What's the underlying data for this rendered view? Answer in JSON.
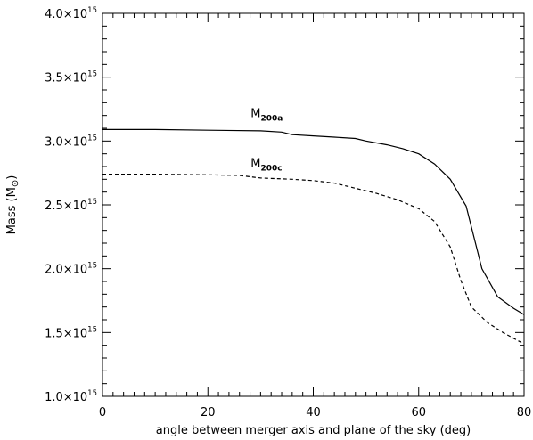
{
  "chart_data": {
    "type": "line",
    "xlabel": "angle between merger axis and plane of the sky (deg)",
    "ylabel": "Mass (M",
    "ylabel_symbol": "⊙",
    "ylabel_close": ")",
    "xlim": [
      0,
      80
    ],
    "ylim": [
      1000000000000000.0,
      4000000000000000.0
    ],
    "x_ticks": [
      0,
      20,
      40,
      60,
      80
    ],
    "x_tick_labels": [
      "0",
      "20",
      "40",
      "60",
      "80"
    ],
    "y_ticks": [
      1000000000000000.0,
      1500000000000000.0,
      2000000000000000.0,
      2500000000000000.0,
      3000000000000000.0,
      3500000000000000.0,
      4000000000000000.0
    ],
    "y_tick_mantissas": [
      "1.0×10",
      "1.5×10",
      "2.0×10",
      "2.5×10",
      "3.0×10",
      "3.5×10",
      "4.0×10"
    ],
    "y_tick_exponent": "15",
    "grid": false,
    "series": [
      {
        "name": "M",
        "name_subscript": "200a",
        "style": "solid",
        "color": "#000000",
        "x": [
          0,
          10,
          20,
          30,
          34,
          36,
          40,
          44,
          48,
          50,
          54,
          57,
          60,
          63,
          66,
          69,
          72,
          75,
          78,
          80
        ],
        "y": [
          3090000000000000.0,
          3090000000000000.0,
          3085000000000000.0,
          3080000000000000.0,
          3070000000000000.0,
          3050000000000000.0,
          3040000000000000.0,
          3030000000000000.0,
          3020000000000000.0,
          3000000000000000.0,
          2970000000000000.0,
          2940000000000000.0,
          2900000000000000.0,
          2820000000000000.0,
          2700000000000000.0,
          2490000000000000.0,
          2000000000000000.0,
          1780000000000000.0,
          1690000000000000.0,
          1640000000000000.0
        ]
      },
      {
        "name": "M",
        "name_subscript": "200c",
        "style": "dashed",
        "color": "#000000",
        "x": [
          0,
          10,
          20,
          26,
          30,
          36,
          40,
          44,
          48,
          52,
          56,
          60,
          63,
          66,
          68,
          70,
          73,
          76,
          80
        ],
        "y": [
          2740000000000000.0,
          2740000000000000.0,
          2735000000000000.0,
          2730000000000000.0,
          2710000000000000.0,
          2700000000000000.0,
          2690000000000000.0,
          2670000000000000.0,
          2630000000000000.0,
          2590000000000000.0,
          2540000000000000.0,
          2470000000000000.0,
          2370000000000000.0,
          2170000000000000.0,
          1910000000000000.0,
          1700000000000000.0,
          1580000000000000.0,
          1500000000000000.0,
          1410000000000000.0
        ]
      }
    ]
  }
}
